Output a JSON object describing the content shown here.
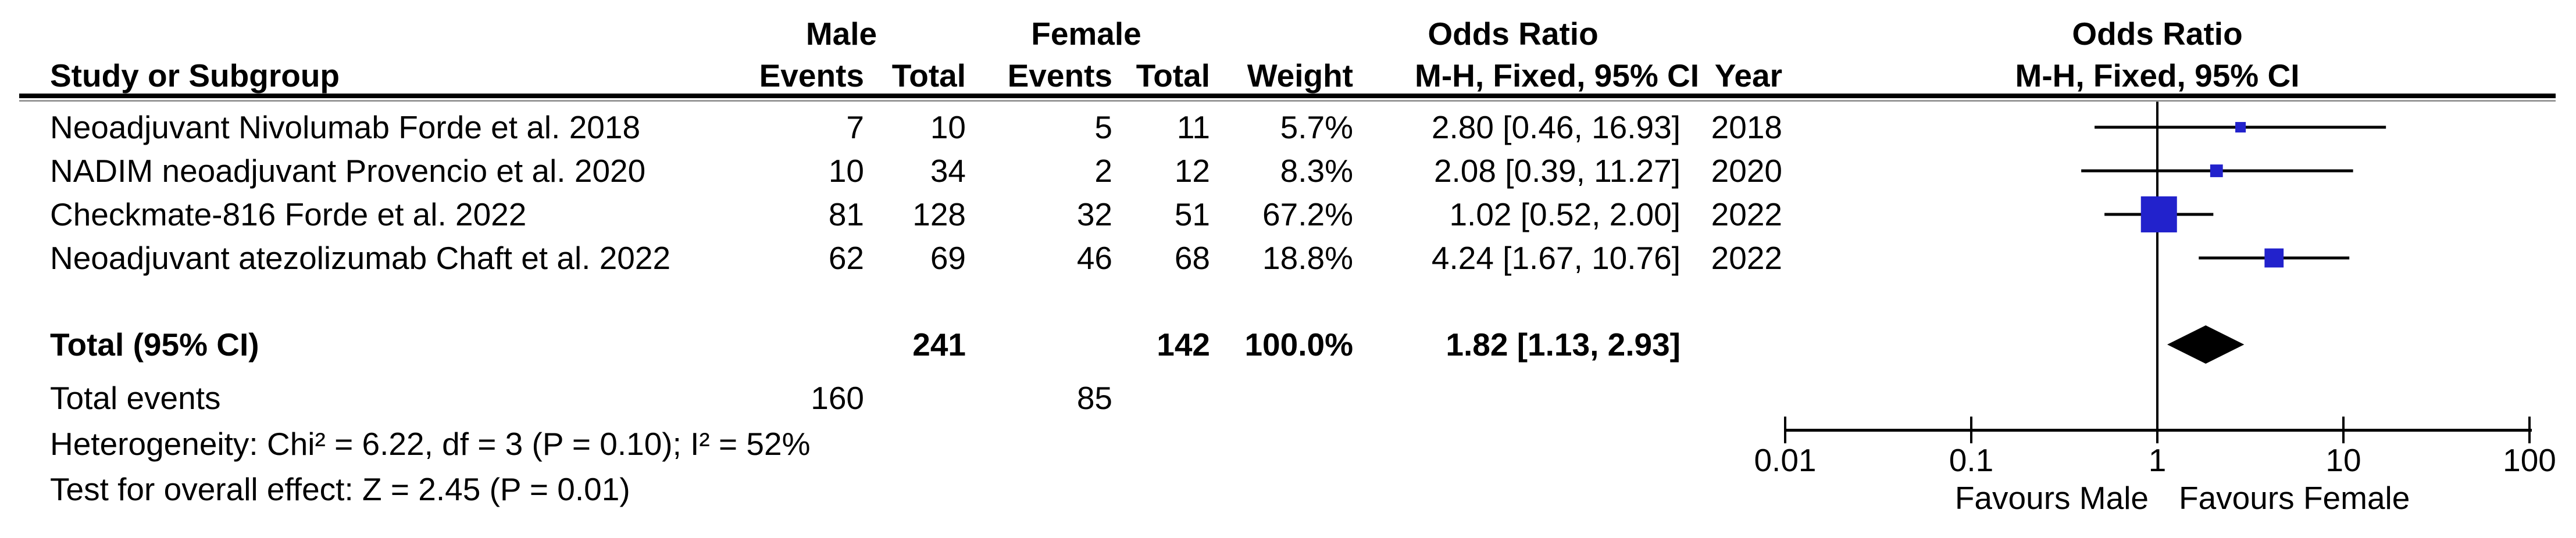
{
  "table": {
    "study_col_header": "Study or Subgroup",
    "group1_header": "Male",
    "group2_header": "Female",
    "or_col_header_line1": "Odds Ratio",
    "or_col_header_line2": "M-H, Fixed, 95% CI",
    "events_header": "Events",
    "total_header": "Total",
    "weight_header": "Weight",
    "year_header": "Year",
    "rows": [
      {
        "study": "Neoadjuvant Nivolumab Forde et al. 2018",
        "events_male": "7",
        "total_male": "10",
        "events_female": "5",
        "total_female": "11",
        "weight": "5.7%",
        "weight_value": 5.7,
        "or_ci": "2.80 [0.46, 16.93]",
        "or": 2.8,
        "ci_low": 0.46,
        "ci_high": 16.93,
        "year": "2018"
      },
      {
        "study": "NADIM neoadjuvant Provencio et al. 2020",
        "events_male": "10",
        "total_male": "34",
        "events_female": "2",
        "total_female": "12",
        "weight": "8.3%",
        "weight_value": 8.3,
        "or_ci": "2.08 [0.39, 11.27]",
        "or": 2.08,
        "ci_low": 0.39,
        "ci_high": 11.27,
        "year": "2020"
      },
      {
        "study": "Checkmate-816 Forde et al. 2022",
        "events_male": "81",
        "total_male": "128",
        "events_female": "32",
        "total_female": "51",
        "weight": "67.2%",
        "weight_value": 67.2,
        "or_ci": "1.02 [0.52, 2.00]",
        "or": 1.02,
        "ci_low": 0.52,
        "ci_high": 2.0,
        "year": "2022"
      },
      {
        "study": "Neoadjuvant atezolizumab Chaft et al. 2022",
        "events_male": "62",
        "total_male": "69",
        "events_female": "46",
        "total_female": "68",
        "weight": "18.8%",
        "weight_value": 18.8,
        "or_ci": "4.24 [1.67, 10.76]",
        "or": 4.24,
        "ci_low": 1.67,
        "ci_high": 10.76,
        "year": "2022"
      }
    ],
    "total": {
      "label": "Total (95% CI)",
      "total_male": "241",
      "total_female": "142",
      "weight": "100.0%",
      "or_ci": "1.82 [1.13, 2.93]",
      "or": 1.82,
      "ci_low": 1.13,
      "ci_high": 2.93
    },
    "total_events": {
      "label": "Total events",
      "male": "160",
      "female": "85"
    }
  },
  "footnotes": {
    "heterogeneity": "Heterogeneity: Chi² = 6.22, df = 3 (P = 0.10); I² = 52%",
    "overall_effect": "Test for overall effect: Z = 2.45 (P = 0.01)"
  },
  "plot": {
    "header_line1": "Odds Ratio",
    "header_line2": "M-H, Fixed, 95% CI",
    "axis_ticks": [
      "0.01",
      "0.1",
      "1",
      "10",
      "100"
    ],
    "favours_left": "Favours Male",
    "favours_right": "Favours Female"
  },
  "colors": {
    "square": "#2222CC",
    "diamond": "#000000",
    "line": "#000000",
    "rule_shadow": "#999999"
  },
  "chart_data": {
    "type": "scatter",
    "subtype": "forest-plot",
    "title": "Odds Ratio, M-H, Fixed, 95% CI (Male vs Female)",
    "x_scale": "log10",
    "xlim": [
      0.01,
      100
    ],
    "x_ticks": [
      0.01,
      0.1,
      1,
      10,
      100
    ],
    "xlabel_left": "Favours Male",
    "xlabel_right": "Favours Female",
    "studies": [
      "Neoadjuvant Nivolumab Forde et al. 2018",
      "NADIM neoadjuvant Provencio et al. 2020",
      "Checkmate-816 Forde et al. 2022",
      "Neoadjuvant atezolizumab Chaft et al. 2022"
    ],
    "years": [
      2018,
      2020,
      2022,
      2022
    ],
    "odds_ratio": [
      2.8,
      2.08,
      1.02,
      4.24
    ],
    "ci_low": [
      0.46,
      0.39,
      0.52,
      1.67
    ],
    "ci_high": [
      16.93,
      11.27,
      2.0,
      10.76
    ],
    "weights_pct": [
      5.7,
      8.3,
      67.2,
      18.8
    ],
    "events_male": [
      7,
      10,
      81,
      62
    ],
    "total_male": [
      10,
      34,
      128,
      69
    ],
    "events_female": [
      5,
      2,
      32,
      46
    ],
    "total_female": [
      11,
      12,
      51,
      68
    ],
    "summary": {
      "or": 1.82,
      "ci_low": 1.13,
      "ci_high": 2.93,
      "total_male": 241,
      "total_female": 142,
      "total_events_male": 160,
      "total_events_female": 85,
      "weight_pct": 100.0
    },
    "heterogeneity": {
      "chi2": 6.22,
      "df": 3,
      "p": 0.1,
      "i2_pct": 52
    },
    "overall_effect": {
      "z": 2.45,
      "p": 0.01
    }
  }
}
